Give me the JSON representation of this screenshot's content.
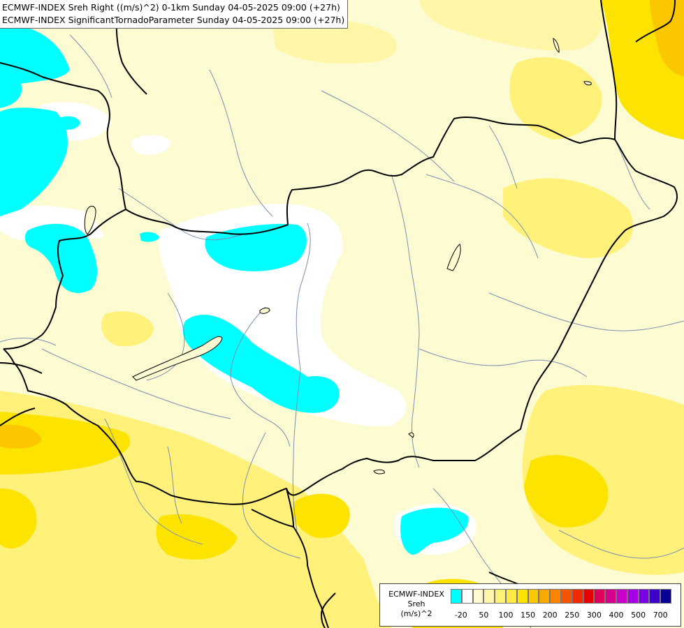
{
  "header": {
    "line1": "ECMWF-INDEX Sreh Right ((m/s)^2) 0-1km Sunday 04-05-2025 09:00 (+27h)",
    "line2": "ECMWF-INDEX SignificantTornadoParameter Sunday 04-05-2025 09:00 (+27h)"
  },
  "legend": {
    "line1": "ECMWF-INDEX",
    "line2": "Sreh",
    "line3": "(m/s)^2",
    "colors": [
      "#00ffff",
      "#ffffff",
      "#fffbcf",
      "#fff6a8",
      "#fff17a",
      "#ffea45",
      "#fde300",
      "#fbc800",
      "#f9a800",
      "#f98500",
      "#f45500",
      "#ef2a00",
      "#e60000",
      "#e0005a",
      "#d6008f",
      "#c800c8",
      "#a600e6",
      "#7a00e6",
      "#3e00c8",
      "#0a0096"
    ],
    "ticks": [
      "-20",
      "50",
      "100",
      "150",
      "200",
      "250",
      "300",
      "400",
      "500",
      "700"
    ]
  },
  "map": {
    "colors": {
      "cyan": "#00ffff",
      "white": "#ffffff",
      "pale": "#fdfbd2",
      "light_yellow": "#fff6a8",
      "yellow": "#fff17a",
      "strong_yellow": "#fde300",
      "orange": "#fbc800",
      "border": "#000000",
      "river": "#7a8fb0"
    }
  }
}
